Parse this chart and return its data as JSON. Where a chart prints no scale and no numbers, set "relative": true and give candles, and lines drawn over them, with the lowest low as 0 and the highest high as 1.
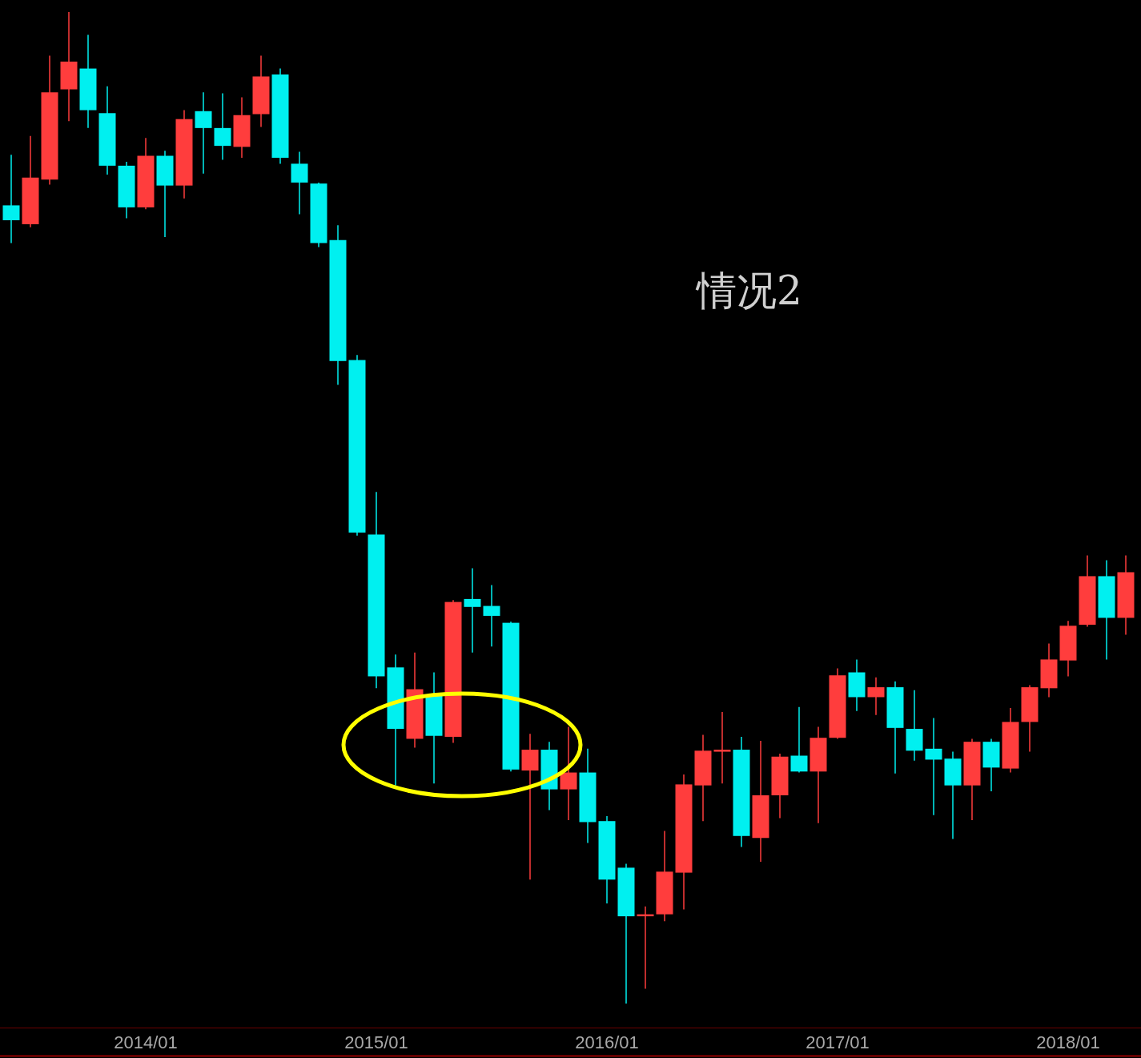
{
  "chart_data": {
    "type": "candlestick",
    "relative": true,
    "categories": [
      null,
      null,
      null,
      null,
      null,
      null,
      null,
      "2014/01",
      null,
      null,
      null,
      null,
      null,
      null,
      null,
      null,
      null,
      null,
      null,
      "2015/01",
      null,
      null,
      null,
      null,
      null,
      null,
      null,
      null,
      null,
      null,
      null,
      "2016/01",
      null,
      null,
      null,
      null,
      null,
      null,
      null,
      null,
      null,
      null,
      null,
      "2017/01",
      null,
      null,
      null,
      null,
      null,
      null,
      null,
      null,
      null,
      null,
      null,
      "2018/01",
      null,
      null,
      null
    ],
    "ohlc": [
      [
        0.805,
        0.856,
        0.767,
        0.79
      ],
      [
        0.786,
        0.875,
        0.783,
        0.833
      ],
      [
        0.831,
        0.956,
        0.826,
        0.919
      ],
      [
        0.922,
        1,
        0.89,
        0.95
      ],
      [
        0.943,
        0.977,
        0.883,
        0.901
      ],
      [
        0.898,
        0.925,
        0.836,
        0.845
      ],
      [
        0.845,
        0.849,
        0.792,
        0.803
      ],
      [
        0.803,
        0.873,
        0.801,
        0.855
      ],
      [
        0.855,
        0.86,
        0.773,
        0.825
      ],
      [
        0.825,
        0.901,
        0.812,
        0.892
      ],
      [
        0.9,
        0.919,
        0.837,
        0.883
      ],
      [
        0.883,
        0.918,
        0.851,
        0.865
      ],
      [
        0.864,
        0.914,
        0.853,
        0.896
      ],
      [
        0.897,
        0.956,
        0.884,
        0.935
      ],
      [
        0.937,
        0.943,
        0.847,
        0.853
      ],
      [
        0.847,
        0.859,
        0.796,
        0.828
      ],
      [
        0.827,
        0.828,
        0.763,
        0.767
      ],
      [
        0.77,
        0.785,
        0.624,
        0.648
      ],
      [
        0.649,
        0.654,
        0.472,
        0.475
      ],
      [
        0.473,
        0.516,
        0.318,
        0.33
      ],
      [
        0.339,
        0.352,
        0.22,
        0.277
      ],
      [
        0.267,
        0.354,
        0.258,
        0.317
      ],
      [
        0.311,
        0.334,
        0.222,
        0.27
      ],
      [
        0.269,
        0.407,
        0.263,
        0.405
      ],
      [
        0.408,
        0.439,
        0.354,
        0.4
      ],
      [
        0.401,
        0.422,
        0.36,
        0.391
      ],
      [
        0.384,
        0.385,
        0.234,
        0.236
      ],
      [
        0.235,
        0.272,
        0.125,
        0.256
      ],
      [
        0.256,
        0.264,
        0.195,
        0.216
      ],
      [
        0.216,
        0.279,
        0.185,
        0.233
      ],
      [
        0.233,
        0.257,
        0.162,
        0.183
      ],
      [
        0.184,
        0.189,
        0.101,
        0.125
      ],
      [
        0.137,
        0.141,
        0,
        0.088
      ],
      [
        0.088,
        0.098,
        0.015,
        0.09
      ],
      [
        0.09,
        0.174,
        0.083,
        0.133
      ],
      [
        0.132,
        0.231,
        0.095,
        0.221
      ],
      [
        0.22,
        0.271,
        0.184,
        0.255
      ],
      [
        0.254,
        0.294,
        0.222,
        0.256
      ],
      [
        0.256,
        0.269,
        0.158,
        0.169
      ],
      [
        0.167,
        0.265,
        0.143,
        0.21
      ],
      [
        0.21,
        0.252,
        0.187,
        0.249
      ],
      [
        0.25,
        0.299,
        0.233,
        0.234
      ],
      [
        0.234,
        0.279,
        0.182,
        0.268
      ],
      [
        0.268,
        0.338,
        0.267,
        0.331
      ],
      [
        0.334,
        0.347,
        0.295,
        0.309
      ],
      [
        0.309,
        0.329,
        0.291,
        0.319
      ],
      [
        0.319,
        0.325,
        0.232,
        0.278
      ],
      [
        0.277,
        0.316,
        0.245,
        0.255
      ],
      [
        0.257,
        0.288,
        0.19,
        0.246
      ],
      [
        0.247,
        0.254,
        0.166,
        0.22
      ],
      [
        0.22,
        0.267,
        0.185,
        0.264
      ],
      [
        0.264,
        0.267,
        0.214,
        0.238
      ],
      [
        0.237,
        0.298,
        0.233,
        0.284
      ],
      [
        0.284,
        0.321,
        0.254,
        0.319
      ],
      [
        0.318,
        0.363,
        0.309,
        0.347
      ],
      [
        0.346,
        0.386,
        0.33,
        0.381
      ],
      [
        0.382,
        0.452,
        0.38,
        0.431
      ],
      [
        0.431,
        0.447,
        0.347,
        0.389
      ],
      [
        0.389,
        0.452,
        0.372,
        0.435
      ]
    ],
    "colors": [
      "#00f0f0",
      "#ff3d3d",
      "#ff3d3d",
      "#ff3d3d",
      "#00f0f0",
      "#00f0f0",
      "#00f0f0",
      "#ff3d3d",
      "#00f0f0",
      "#ff3d3d",
      "#00f0f0",
      "#00f0f0",
      "#ff3d3d",
      "#ff3d3d",
      "#00f0f0",
      "#00f0f0",
      "#00f0f0",
      "#00f0f0",
      "#00f0f0",
      "#00f0f0",
      "#00f0f0",
      "#ff3d3d",
      "#00f0f0",
      "#ff3d3d",
      "#00f0f0",
      "#00f0f0",
      "#00f0f0",
      "#ff3d3d",
      "#00f0f0",
      "#ff3d3d",
      "#00f0f0",
      "#00f0f0",
      "#00f0f0",
      "#ff3d3d",
      "#ff3d3d",
      "#ff3d3d",
      "#ff3d3d",
      "#ff3d3d",
      "#00f0f0",
      "#ff3d3d",
      "#ff3d3d",
      "#00f0f0",
      "#ff3d3d",
      "#ff3d3d",
      "#00f0f0",
      "#ff3d3d",
      "#00f0f0",
      "#00f0f0",
      "#00f0f0",
      "#00f0f0",
      "#ff3d3d",
      "#00f0f0",
      "#ff3d3d",
      "#ff3d3d",
      "#ff3d3d",
      "#ff3d3d",
      "#ff3d3d",
      "#00f0f0",
      "#ff3d3d"
    ],
    "annotations": [
      "情况2"
    ]
  }
}
